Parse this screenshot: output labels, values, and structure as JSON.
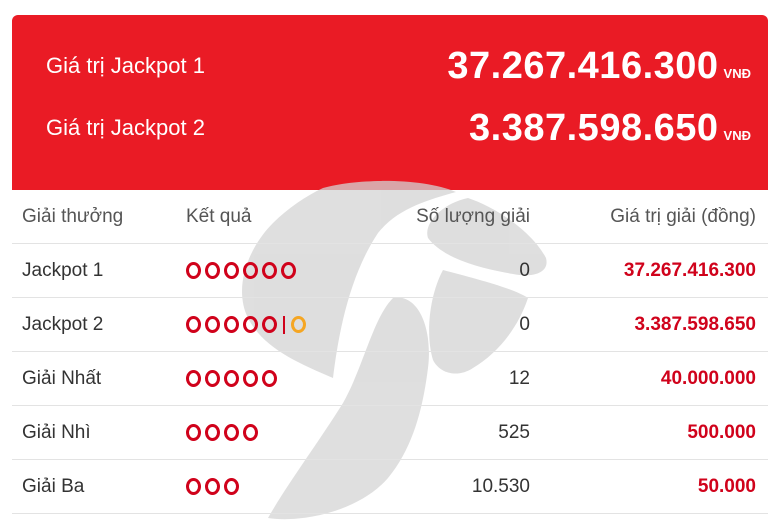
{
  "jackpots": [
    {
      "label": "Giá trị Jackpot 1",
      "amount": "37.267.416.300",
      "unit": "VNĐ"
    },
    {
      "label": "Giá trị Jackpot 2",
      "amount": "3.387.598.650",
      "unit": "VNĐ"
    }
  ],
  "table": {
    "headers": {
      "prize": "Giải thưởng",
      "result": "Kết quả",
      "count": "Số lượng giải",
      "value": "Giá trị giải (đồng)"
    },
    "rows": [
      {
        "prize": "Jackpot 1",
        "red_balls": 6,
        "gold_balls": 0,
        "count": "0",
        "value": "37.267.416.300"
      },
      {
        "prize": "Jackpot 2",
        "red_balls": 5,
        "gold_balls": 1,
        "count": "0",
        "value": "3.387.598.650"
      },
      {
        "prize": "Giải Nhất",
        "red_balls": 5,
        "gold_balls": 0,
        "count": "12",
        "value": "40.000.000"
      },
      {
        "prize": "Giải Nhì",
        "red_balls": 4,
        "gold_balls": 0,
        "count": "525",
        "value": "500.000"
      },
      {
        "prize": "Giải Ba",
        "red_balls": 3,
        "gold_balls": 0,
        "count": "10.530",
        "value": "50.000"
      }
    ]
  },
  "colors": {
    "banner": "#ea1b25",
    "amount": "#d0021b",
    "ball_red": "#d0021b",
    "ball_gold": "#f5a623"
  },
  "icons": {
    "watermark": "vietlott-star-watermark-icon"
  }
}
